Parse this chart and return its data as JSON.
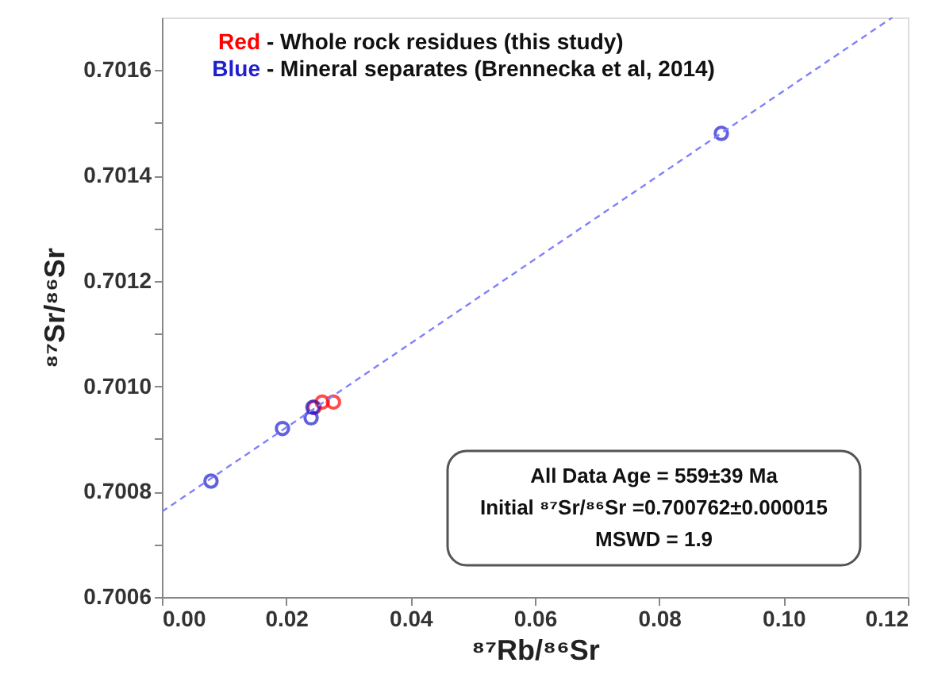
{
  "chart_data": {
    "type": "scatter",
    "xlabel": "⁸⁷Rb/⁸⁶Sr",
    "ylabel": "⁸⁷Sr/⁸⁶Sr",
    "xlim": [
      0,
      0.12
    ],
    "ylim": [
      0.7006,
      0.7017
    ],
    "xticks": [
      {
        "value": 0,
        "label": "0.00"
      },
      {
        "value": 0.02,
        "label": "0.02"
      },
      {
        "value": 0.04,
        "label": "0.04"
      },
      {
        "value": 0.06,
        "label": "0.06"
      },
      {
        "value": 0.08,
        "label": "0.08"
      },
      {
        "value": 0.1,
        "label": "0.10"
      },
      {
        "value": 0.12,
        "label": "0.12"
      }
    ],
    "yticks": [
      {
        "value": 0.7006,
        "label": "0.7006"
      },
      {
        "value": 0.7007,
        "label": null
      },
      {
        "value": 0.7008,
        "label": "0.7008"
      },
      {
        "value": 0.7009,
        "label": null
      },
      {
        "value": 0.701,
        "label": "0.7010"
      },
      {
        "value": 0.7011,
        "label": null
      },
      {
        "value": 0.7012,
        "label": "0.7012"
      },
      {
        "value": 0.7013,
        "label": null
      },
      {
        "value": 0.7014,
        "label": "0.7014"
      },
      {
        "value": 0.7015,
        "label": null
      },
      {
        "value": 0.7016,
        "label": "0.7016"
      }
    ],
    "grid": false,
    "legend": "top left",
    "series": [
      {
        "name": "Red - Whole rock residues (this study)",
        "color": "#ff0000",
        "marker": "circle",
        "x": [
          0.0245,
          0.0258,
          0.0276
        ],
        "values": [
          0.70096,
          0.70097,
          0.70097
        ]
      },
      {
        "name": "Blue - Mineral separates (Brennecka et al, 2014)",
        "color": "#1f1fd0",
        "marker": "circle",
        "x": [
          0.0079,
          0.0194,
          0.024,
          0.0243,
          0.09
        ],
        "values": [
          0.70082,
          0.70092,
          0.70094,
          0.70096,
          0.70148
        ]
      },
      {
        "color": "#8080ff",
        "type": "line",
        "line_style": "dashed",
        "x": [
          0,
          0.1175
        ],
        "values": [
          0.700762,
          0.7017
        ]
      }
    ],
    "annotations": [
      "All Data Age = 559±39 Ma",
      "Initial ⁸⁷Sr/⁸⁶Sr =0.700762±0.000015",
      "MSWD = 1.9"
    ]
  }
}
